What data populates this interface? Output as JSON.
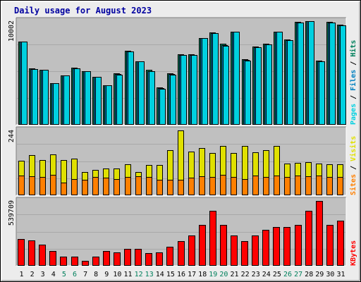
{
  "chart_data": {
    "type": "bar",
    "title": "Daily usage for August 2023",
    "colors": {
      "background": "#ececec",
      "panel": "#c0c0c0",
      "title": "#0000a0",
      "hits": "#00805c",
      "files": "#0080c0",
      "pages": "#00d0e0",
      "visits": "#e0e000",
      "sites": "#ff8000",
      "kbytes": "#ff0000",
      "weekend_tick": "#00805c",
      "weekday_tick": "#000000"
    },
    "x": [
      "1",
      "2",
      "3",
      "4",
      "5",
      "6",
      "7",
      "8",
      "9",
      "10",
      "11",
      "12",
      "13",
      "14",
      "15",
      "16",
      "17",
      "18",
      "19",
      "20",
      "21",
      "22",
      "23",
      "24",
      "25",
      "26",
      "27",
      "28",
      "29",
      "30",
      "31"
    ],
    "weekend_days": [
      "5",
      "6",
      "12",
      "13",
      "19",
      "20",
      "26",
      "27"
    ],
    "panels": [
      {
        "id": "hits_files_pages",
        "ymax_label": "10002",
        "ymax": 10002,
        "right_label": [
          {
            "text": "Pages",
            "color_key": "pages"
          },
          {
            "text": " / ",
            "color_key": "weekday_tick"
          },
          {
            "text": "Files",
            "color_key": "files"
          },
          {
            "text": " / ",
            "color_key": "weekday_tick"
          },
          {
            "text": "Hits",
            "color_key": "hits"
          }
        ],
        "series": [
          {
            "name": "Hits",
            "color_key": "hits",
            "values": [
              8000,
              5450,
              5300,
              4000,
              4750,
              5500,
              5200,
              4650,
              3800,
              4950,
              7150,
              6150,
              5300,
              3600,
              4950,
              6800,
              6800,
              8400,
              8900,
              7800,
              9000,
              6300,
              7550,
              7800,
              9000,
              8200,
              9900,
              10002,
              6200,
              9900,
              9650
            ]
          },
          {
            "name": "Files",
            "color_key": "files",
            "values": [
              8000,
              5400,
              5300,
              4000,
              4750,
              5450,
              5150,
              4600,
              3800,
              4900,
              7100,
              6100,
              5200,
              3550,
              4900,
              6750,
              6750,
              8350,
              8850,
              7700,
              8950,
              6250,
              7500,
              7750,
              8950,
              8150,
              9850,
              10002,
              6150,
              9850,
              9600
            ]
          },
          {
            "name": "Pages",
            "color_key": "pages",
            "values": [
              8000,
              5350,
              5300,
              4000,
              4750,
              5450,
              5150,
              4600,
              3800,
              4850,
              7100,
              6100,
              5150,
              3500,
              4850,
              6750,
              6750,
              8350,
              8850,
              7650,
              8950,
              6200,
              7500,
              7750,
              8950,
              8150,
              9850,
              10002,
              6150,
              9850,
              9600
            ]
          }
        ]
      },
      {
        "id": "visits_sites",
        "ymax_label": "244",
        "ymax": 244,
        "right_label": [
          {
            "text": "Sites",
            "color_key": "sites"
          },
          {
            "text": " / ",
            "color_key": "weekday_tick"
          },
          {
            "text": "Visits",
            "color_key": "visits"
          }
        ],
        "series": [
          {
            "name": "Visits",
            "color_key": "visits",
            "values": [
              130,
              152,
              133,
              155,
              132,
              137,
              87,
              95,
              102,
              100,
              118,
              87,
              113,
              115,
              170,
              244,
              165,
              178,
              160,
              185,
              158,
              185,
              162,
              170,
              185,
              120,
              122,
              125,
              120,
              118,
              118
            ]
          },
          {
            "name": "Sites",
            "color_key": "sites",
            "values": [
              75,
              72,
              70,
              78,
              48,
              62,
              58,
              68,
              65,
              60,
              70,
              72,
              70,
              58,
              58,
              58,
              65,
              72,
              68,
              78,
              68,
              60,
              75,
              70,
              75,
              70,
              75,
              72,
              75,
              70,
              68
            ]
          }
        ]
      },
      {
        "id": "kbytes",
        "ymax_label": "539709",
        "ymax": 539709,
        "right_label": [
          {
            "text": "KBytes",
            "color_key": "kbytes"
          }
        ],
        "series": [
          {
            "name": "KBytes",
            "color_key": "kbytes",
            "values": [
              220000,
              209000,
              177000,
              126000,
              78000,
              78000,
              43000,
              78000,
              126000,
              113000,
              140000,
              140000,
              103000,
              113000,
              157000,
              206000,
              252000,
              343000,
              458000,
              343000,
              252000,
              206000,
              252000,
              300000,
              323000,
              323000,
              343000,
              458000,
              539709,
              343000,
              378000
            ]
          }
        ]
      }
    ]
  }
}
